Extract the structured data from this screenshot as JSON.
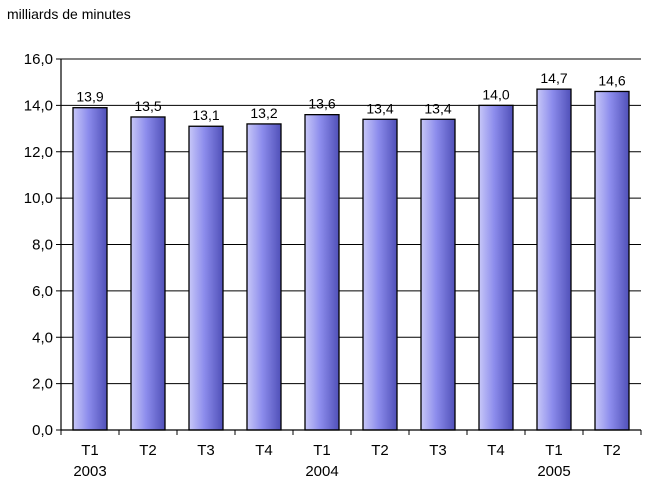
{
  "chart_data": {
    "type": "bar",
    "unit_label": "milliards de minutes",
    "categories": [
      "T1",
      "T2",
      "T3",
      "T4",
      "T1",
      "T2",
      "T3",
      "T4",
      "T1",
      "T2"
    ],
    "years": [
      "2003",
      "",
      "",
      "",
      "2004",
      "",
      "",
      "",
      "2005",
      ""
    ],
    "values": [
      13.9,
      13.5,
      13.1,
      13.2,
      13.6,
      13.4,
      13.4,
      14.0,
      14.7,
      14.6
    ],
    "value_labels": [
      "13,9",
      "13,5",
      "13,1",
      "13,2",
      "13,6",
      "13,4",
      "13,4",
      "14,0",
      "14,7",
      "14,6"
    ],
    "ylim": [
      0,
      16
    ],
    "yticks": [
      0,
      2,
      4,
      6,
      8,
      10,
      12,
      14,
      16
    ],
    "ytick_labels": [
      "0,0",
      "2,0",
      "4,0",
      "6,0",
      "8,0",
      "10,0",
      "12,0",
      "14,0",
      "16,0"
    ],
    "grid": true,
    "colors": {
      "bar_light": "#c8c8f8",
      "bar_mid": "#8c8cec",
      "bar_dark": "#5050b8",
      "grid": "#000000"
    }
  }
}
